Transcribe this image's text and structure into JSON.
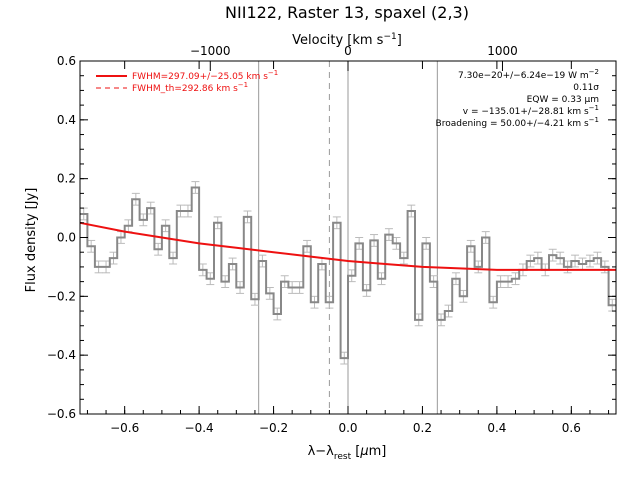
{
  "chart_data": {
    "type": "line",
    "title": "NII122, Raster 13, spaxel (2,3)",
    "xlabel": "λ−λ_rest [μm]",
    "xlabel_main": "λ−λ",
    "xlabel_sub": "rest",
    "xlabel_unit_open": " [",
    "xlabel_unit_mu": "μ",
    "xlabel_unit_close": "m]",
    "ylabel": "Flux density [Jy]",
    "x2label": "Velocity [km s⁻¹]",
    "x2label_main": "Velocity [km s",
    "x2label_exp": "−1",
    "x2label_close": "]",
    "xlim": [
      -0.72,
      0.72
    ],
    "ylim": [
      -0.6,
      0.6
    ],
    "x_ticks": [
      -0.6,
      -0.4,
      -0.2,
      0.0,
      0.2,
      0.4,
      0.6
    ],
    "x_tick_labels": [
      "−0.6",
      "−0.4",
      "−0.2",
      "0.0",
      "0.2",
      "0.4",
      "0.6"
    ],
    "y_ticks": [
      -0.6,
      -0.4,
      -0.2,
      0.0,
      0.2,
      0.4,
      0.6
    ],
    "y_tick_labels": [
      "−0.6",
      "−0.4",
      "−0.2",
      "0.0",
      "0.2",
      "0.4",
      "0.6"
    ],
    "x2_ticks": [
      -0.37,
      0.0,
      0.415
    ],
    "x2_tick_labels": [
      "−1000",
      "0",
      "1000"
    ],
    "vlines": [
      {
        "x": -0.24,
        "style": "solid"
      },
      {
        "x": -0.05,
        "style": "dashed"
      },
      {
        "x": 0.0,
        "style": "solid"
      },
      {
        "x": 0.24,
        "style": "solid"
      }
    ],
    "legend": [
      {
        "label": "FWHM=297.09+/−25.05 km s",
        "exp": "−1",
        "style": "solid",
        "color": "#ee1111"
      },
      {
        "label": "FWHM_th=292.86 km s",
        "exp": "−1",
        "style": "dashed",
        "color": "#ee1111"
      }
    ],
    "annotations": [
      {
        "text": "7.30e−20+/−6.24e−19 W m",
        "exp": "−2"
      },
      {
        "text": "0.11σ",
        "exp": ""
      },
      {
        "text": "EQW = 0.33 μm",
        "exp": ""
      },
      {
        "text": "v = −135.01+/−28.81 km s",
        "exp": "−1"
      },
      {
        "text": "Broadening = 50.00+/−4.21 km s",
        "exp": "−1"
      }
    ],
    "series": [
      {
        "style": "steps",
        "color": "#888888",
        "x": [
          -0.72,
          -0.7,
          -0.68,
          -0.66,
          -0.64,
          -0.62,
          -0.6,
          -0.58,
          -0.56,
          -0.54,
          -0.52,
          -0.5,
          -0.48,
          -0.46,
          -0.44,
          -0.42,
          -0.4,
          -0.38,
          -0.36,
          -0.34,
          -0.32,
          -0.3,
          -0.28,
          -0.26,
          -0.24,
          -0.22,
          -0.2,
          -0.18,
          -0.16,
          -0.14,
          -0.12,
          -0.1,
          -0.08,
          -0.06,
          -0.04,
          -0.02,
          0.0,
          0.02,
          0.04,
          0.06,
          0.08,
          0.1,
          0.12,
          0.14,
          0.16,
          0.18,
          0.2,
          0.22,
          0.24,
          0.26,
          0.28,
          0.3,
          0.32,
          0.34,
          0.36,
          0.38,
          0.4,
          0.42,
          0.44,
          0.46,
          0.48,
          0.5,
          0.52,
          0.54,
          0.56,
          0.58,
          0.6,
          0.62,
          0.64,
          0.66,
          0.68,
          0.7
        ],
        "y": [
          0.08,
          -0.03,
          -0.1,
          -0.1,
          -0.07,
          0.0,
          0.04,
          0.13,
          0.06,
          0.1,
          -0.04,
          0.04,
          -0.07,
          0.09,
          0.09,
          0.17,
          -0.11,
          -0.14,
          0.05,
          -0.15,
          -0.09,
          -0.17,
          0.07,
          -0.21,
          -0.08,
          -0.19,
          -0.26,
          -0.15,
          -0.17,
          -0.17,
          -0.03,
          -0.22,
          -0.09,
          -0.22,
          0.05,
          -0.41,
          -0.13,
          -0.02,
          -0.18,
          -0.01,
          -0.14,
          0.01,
          -0.02,
          -0.07,
          0.09,
          -0.28,
          -0.02,
          -0.15,
          -0.28,
          -0.25,
          -0.14,
          -0.2,
          -0.03,
          -0.1,
          0.0,
          -0.22,
          -0.15,
          -0.15,
          -0.14,
          -0.11,
          -0.08,
          -0.07,
          -0.11,
          -0.06,
          -0.07,
          -0.1,
          -0.08,
          -0.09,
          -0.08,
          -0.07,
          -0.1,
          -0.23
        ],
        "err": 0.02
      },
      {
        "style": "fit",
        "color": "#ee1111",
        "x": [
          -0.72,
          -0.6,
          -0.5,
          -0.4,
          -0.3,
          -0.2,
          -0.1,
          0.0,
          0.1,
          0.2,
          0.3,
          0.4,
          0.5,
          0.6,
          0.72
        ],
        "y": [
          0.05,
          0.02,
          0.0,
          -0.02,
          -0.035,
          -0.05,
          -0.065,
          -0.08,
          -0.09,
          -0.1,
          -0.105,
          -0.11,
          -0.11,
          -0.11,
          -0.11
        ]
      }
    ]
  }
}
